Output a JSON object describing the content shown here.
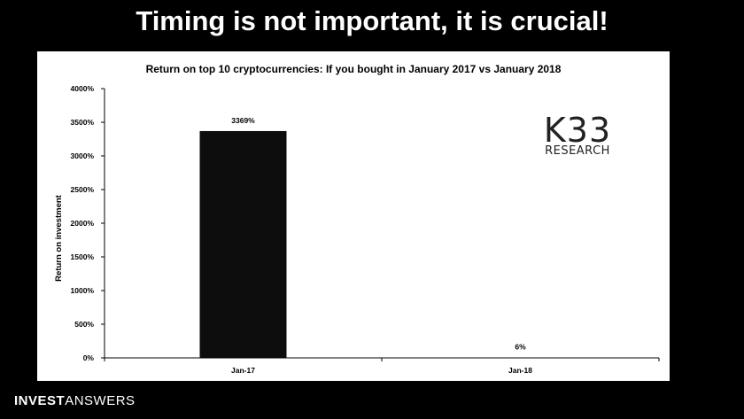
{
  "headline": "Timing is not important, it is crucial!",
  "logo": {
    "main": "K33",
    "sub": "RESEARCH"
  },
  "brand": {
    "strong": "INVEST",
    "light": "ANSWERS"
  },
  "colors": {
    "background": "#000000",
    "panel": "#ffffff",
    "bar": "#0d0d0d"
  },
  "chart_data": {
    "type": "bar",
    "title": "Return on top 10 cryptocurrencies: If you bought in January 2017 vs January 2018",
    "xlabel": "",
    "ylabel": "Return on investment",
    "categories": [
      "Jan-17",
      "Jan-18"
    ],
    "values": [
      3369,
      6
    ],
    "data_labels": [
      "3369%",
      "6%"
    ],
    "yticks": [
      0,
      500,
      1000,
      1500,
      2000,
      2500,
      3000,
      3500,
      4000
    ],
    "ytick_labels": [
      "0%",
      "500%",
      "1000%",
      "1500%",
      "2000%",
      "2500%",
      "3000%",
      "3500%",
      "4000%"
    ],
    "ylim": [
      0,
      4000
    ],
    "grid": false,
    "legend": "none"
  }
}
